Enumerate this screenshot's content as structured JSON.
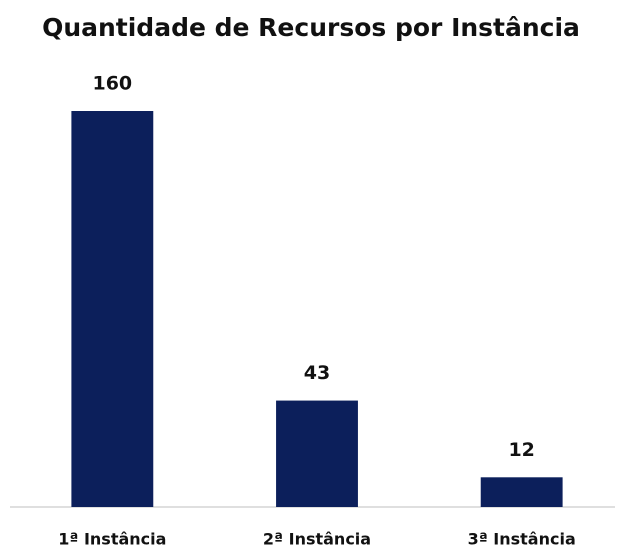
{
  "chart_data": {
    "type": "bar",
    "title": "Quantidade de Recursos por Instância",
    "categories": [
      "1ª Instância",
      "2ª Instância",
      "3ª Instância"
    ],
    "values": [
      160,
      43,
      12
    ],
    "color": "#0c1f5b"
  }
}
